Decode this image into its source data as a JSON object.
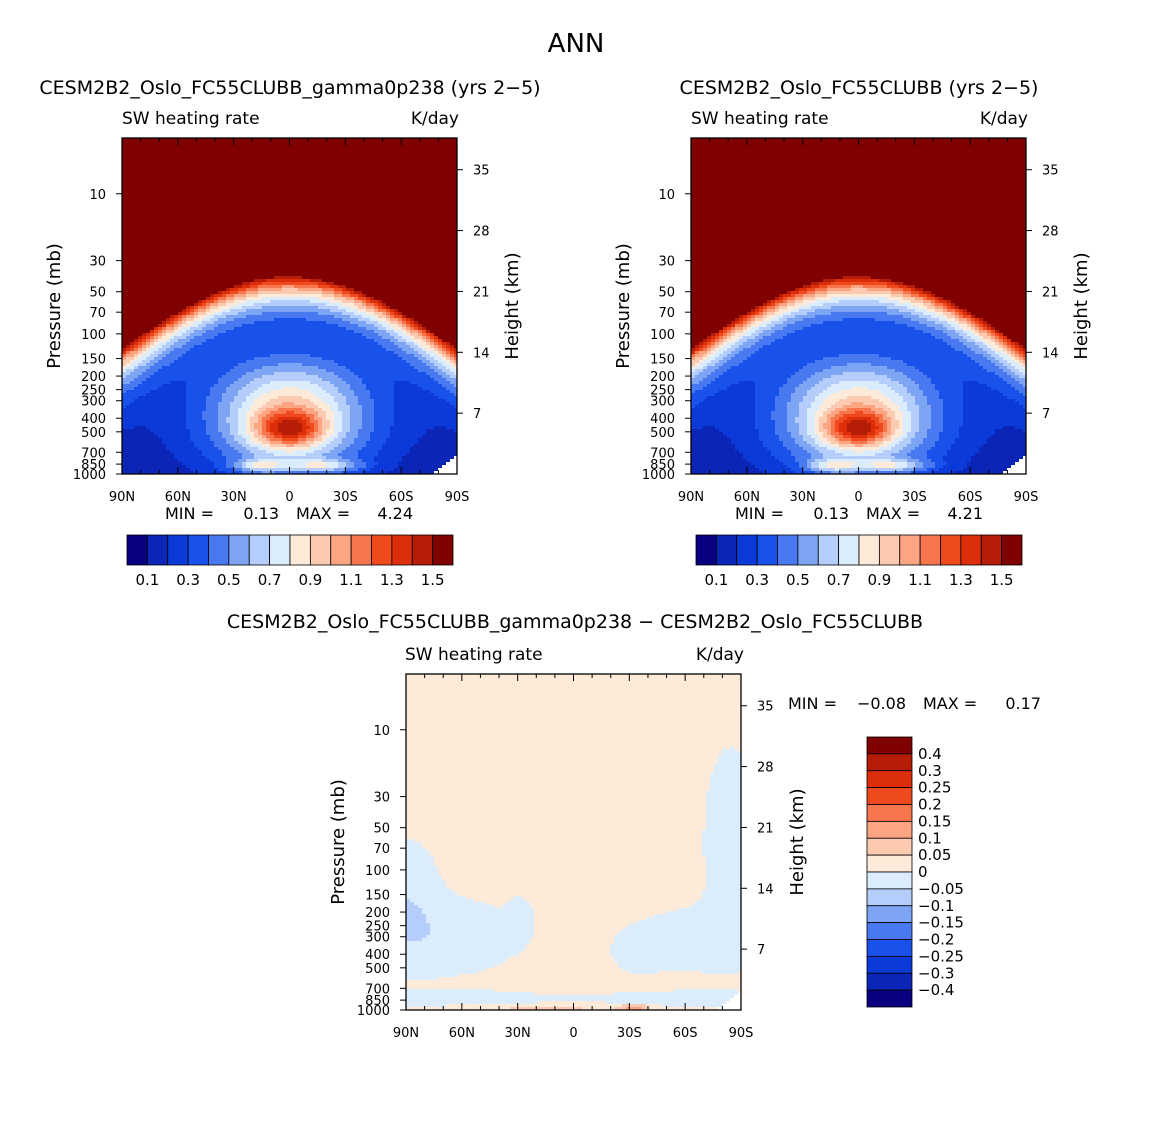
{
  "figure": {
    "title": "ANN"
  },
  "colors": {
    "abs_scale": [
      "#08007e",
      "#0b25b6",
      "#0c3ad8",
      "#1852ea",
      "#4879f0",
      "#7ea4f4",
      "#b4cdfa",
      "#dbecfd",
      "#fdead9",
      "#fccab1",
      "#fba582",
      "#f8764d",
      "#ef4a1d",
      "#dd2e0b",
      "#b61d06",
      "#800101"
    ],
    "diff_scale": [
      "#800101",
      "#b61d06",
      "#dd2e0b",
      "#ef4a1d",
      "#f8764d",
      "#fba582",
      "#fccab1",
      "#fdead9",
      "#dbecfd",
      "#b4cdfa",
      "#7ea4f4",
      "#4879f0",
      "#1852ea",
      "#0c3ad8",
      "#0b25b6",
      "#08007e"
    ]
  },
  "chart_data": [
    {
      "type": "heatmap",
      "title": "CESM2B2_Oslo_FC55CLUBB_gamma0p238 (yrs 2−5)",
      "left_label": "SW heating rate",
      "right_label": "K/day",
      "ylabel": "Pressure (mb)",
      "y2label": "Height (km)",
      "x_ticks": [
        "90N",
        "60N",
        "30N",
        "0",
        "30S",
        "60S",
        "90S"
      ],
      "y_ticks": [
        "10",
        "30",
        "50",
        "70",
        "100",
        "150",
        "200",
        "250",
        "300",
        "400",
        "500",
        "700",
        "850",
        "1000"
      ],
      "y2_ticks": [
        "35",
        "28",
        "21",
        "14",
        "7"
      ],
      "stats": {
        "min_label": "MIN =",
        "min": "0.13",
        "max_label": "MAX =",
        "max": "4.24"
      },
      "levels": [
        0.1,
        0.2,
        0.3,
        0.4,
        0.5,
        0.6,
        0.7,
        0.8,
        0.9,
        1.0,
        1.1,
        1.2,
        1.3,
        1.4,
        1.5
      ],
      "colorbar_labels": [
        "0.1",
        "0.3",
        "0.5",
        "0.7",
        "0.9",
        "1.1",
        "1.3",
        "1.5"
      ]
    },
    {
      "type": "heatmap",
      "title": "CESM2B2_Oslo_FC55CLUBB (yrs 2−5)",
      "left_label": "SW heating rate",
      "right_label": "K/day",
      "ylabel": "Pressure (mb)",
      "y2label": "Height (km)",
      "x_ticks": [
        "90N",
        "60N",
        "30N",
        "0",
        "30S",
        "60S",
        "90S"
      ],
      "y_ticks": [
        "10",
        "30",
        "50",
        "70",
        "100",
        "150",
        "200",
        "250",
        "300",
        "400",
        "500",
        "700",
        "850",
        "1000"
      ],
      "y2_ticks": [
        "35",
        "28",
        "21",
        "14",
        "7"
      ],
      "stats": {
        "min_label": "MIN =",
        "min": "0.13",
        "max_label": "MAX =",
        "max": "4.21"
      },
      "levels": [
        0.1,
        0.2,
        0.3,
        0.4,
        0.5,
        0.6,
        0.7,
        0.8,
        0.9,
        1.0,
        1.1,
        1.2,
        1.3,
        1.4,
        1.5
      ],
      "colorbar_labels": [
        "0.1",
        "0.3",
        "0.5",
        "0.7",
        "0.9",
        "1.1",
        "1.3",
        "1.5"
      ]
    },
    {
      "type": "heatmap",
      "title": "CESM2B2_Oslo_FC55CLUBB_gamma0p238 − CESM2B2_Oslo_FC55CLUBB",
      "left_label": "SW heating rate",
      "right_label": "K/day",
      "ylabel": "Pressure (mb)",
      "y2label": "Height (km)",
      "x_ticks": [
        "90N",
        "60N",
        "30N",
        "0",
        "30S",
        "60S",
        "90S"
      ],
      "y_ticks": [
        "10",
        "30",
        "50",
        "70",
        "100",
        "150",
        "200",
        "250",
        "300",
        "400",
        "500",
        "700",
        "850",
        "1000"
      ],
      "y2_ticks": [
        "35",
        "28",
        "21",
        "14",
        "7"
      ],
      "stats": {
        "min_label": "MIN =",
        "min": "−0.08",
        "max_label": "MAX =",
        "max": "0.17"
      },
      "levels": [
        -0.4,
        -0.3,
        -0.25,
        -0.2,
        -0.15,
        -0.1,
        -0.05,
        0,
        0.05,
        0.1,
        0.15,
        0.2,
        0.25,
        0.3,
        0.4
      ],
      "colorbar_labels": [
        "0.4",
        "0.3",
        "0.25",
        "0.2",
        "0.15",
        "0.1",
        "0.05",
        "0",
        "−0.05",
        "−0.1",
        "−0.15",
        "−0.2",
        "−0.25",
        "−0.3",
        "−0.4"
      ]
    }
  ]
}
